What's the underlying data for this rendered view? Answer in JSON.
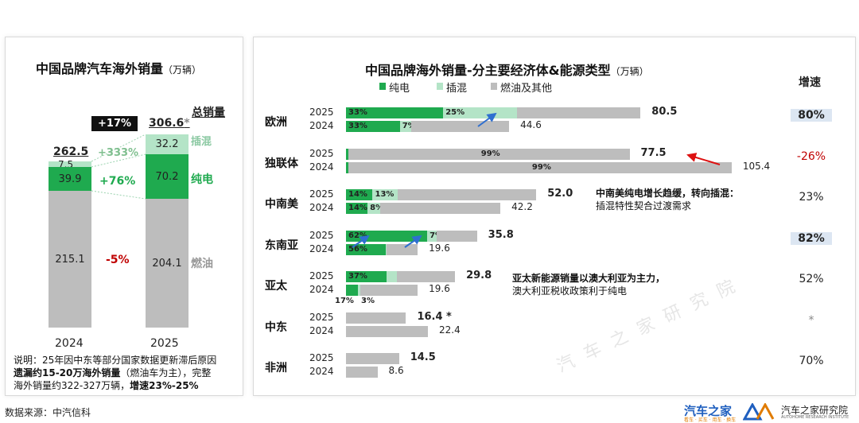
{
  "left": {
    "title": "中国品牌汽车海外销量",
    "unit": "（万辆）",
    "growth_box": "+17%",
    "total_header": "总销量",
    "years": [
      "2024",
      "2025"
    ],
    "bars": [
      {
        "year": "2024",
        "total": "262.5",
        "ice": "215.1",
        "ev": "39.9",
        "phev": "7.5"
      },
      {
        "year": "2025",
        "total": "306.6",
        "total_mark": "*",
        "ice": "204.1",
        "ev": "70.2",
        "phev": "32.2"
      }
    ],
    "changes": {
      "phev": "+333%",
      "ev": "+76%",
      "ice": "-5%"
    },
    "series_labels": {
      "phev": "插混",
      "ev": "纯电",
      "ice": "燃油"
    },
    "note_line1": "说明：25年因中东等部分国家数据更新滞后原因",
    "note_line2_bold": "遗漏约15-20万海外销量",
    "note_line2_rest": "（燃油车为主），完整",
    "note_line3": "海外销量约322-327万辆，",
    "note_line3_bold": "增速23%-25%"
  },
  "right": {
    "title": "中国品牌海外销量-分主要经济体&能源类型",
    "unit": "（万辆）",
    "growth_header": "增速",
    "legend": [
      "纯电",
      "插混",
      "燃油及其他"
    ],
    "note_latam_1": "中南美纯电增长趋缓，转向插混：",
    "note_latam_2": "插混特性契合过渡需求",
    "note_apac_1": "亚太新能源销量以澳大利亚为主力，",
    "note_apac_2": "澳大利亚税收政策利于纯电",
    "watermark": "汽 车 之 家 研 究 院"
  },
  "chart_data": [
    {
      "type": "bar",
      "title": "中国品牌汽车海外销量",
      "categories": [
        "2024",
        "2025"
      ],
      "series": [
        {
          "name": "燃油",
          "values": [
            215.1,
            204.1
          ]
        },
        {
          "name": "纯电",
          "values": [
            39.9,
            70.2
          ]
        },
        {
          "name": "插混",
          "values": [
            7.5,
            32.2
          ]
        }
      ],
      "totals": [
        262.5,
        306.6
      ]
    },
    {
      "type": "bar",
      "title": "中国品牌海外销量-分主要经济体&能源类型",
      "regions": [
        {
          "name": "欧洲",
          "growth": "80%",
          "highlight": true,
          "y2025": {
            "total": 80.5,
            "total_label": "80.5",
            "ev_pct": "33%",
            "phev_pct": "25%"
          },
          "y2024": {
            "total": 44.6,
            "total_label": "44.6",
            "ev_pct": "33%",
            "phev_pct": "7%"
          }
        },
        {
          "name": "独联体",
          "growth": "-26%",
          "highlight": false,
          "y2025": {
            "total": 77.5,
            "total_label": "77.5",
            "other_pct": "99%"
          },
          "y2024": {
            "total": 105.4,
            "total_label": "105.4",
            "other_pct": "99%"
          }
        },
        {
          "name": "中南美",
          "growth": "23%",
          "highlight": false,
          "y2025": {
            "total": 52.0,
            "total_label": "52.0",
            "ev_pct": "14%",
            "phev_pct": "13%"
          },
          "y2024": {
            "total": 42.2,
            "total_label": "42.2",
            "ev_pct": "14%",
            "phev_pct": "8%"
          }
        },
        {
          "name": "东南亚",
          "growth": "82%",
          "highlight": true,
          "y2025": {
            "total": 35.8,
            "total_label": "35.8",
            "ev_pct": "62%",
            "phev_pct": "7%"
          },
          "y2024": {
            "total": 19.6,
            "total_label": "19.6",
            "ev_pct": "56%",
            "phev_pct": "1%"
          }
        },
        {
          "name": "亚太",
          "growth": "52%",
          "highlight": false,
          "y2025": {
            "total": 29.8,
            "total_label": "29.8",
            "ev_pct": "37%",
            "phev_pct": "10%"
          },
          "y2024": {
            "total": 19.6,
            "total_label": "19.6",
            "ev_pct": "17%",
            "phev_pct": "3%"
          }
        },
        {
          "name": "中东",
          "growth": "*",
          "highlight": false,
          "y2025": {
            "total": 16.4,
            "total_label": "16.4",
            "total_mark": "*"
          },
          "y2024": {
            "total": 22.4,
            "total_label": "22.4"
          }
        },
        {
          "name": "非洲",
          "growth": "70%",
          "highlight": false,
          "y2025": {
            "total": 14.5,
            "total_label": "14.5"
          },
          "y2024": {
            "total": 8.6,
            "total_label": "8.6"
          }
        }
      ]
    }
  ],
  "colors": {
    "ev": "#1faa4f",
    "phev": "#b4e4c7",
    "ice": "#bdbdbd",
    "decline": "#c00000",
    "highlight": "#dce6f2"
  },
  "footer": {
    "source": "数据来源：中汽信科",
    "brand_main": "汽车之家",
    "brand_sub": "看车 · 买车 · 用车 · 换车",
    "institute": "汽车之家研究院",
    "institute_en": "AUTOHOME RESEARCH INSTITUTE"
  }
}
